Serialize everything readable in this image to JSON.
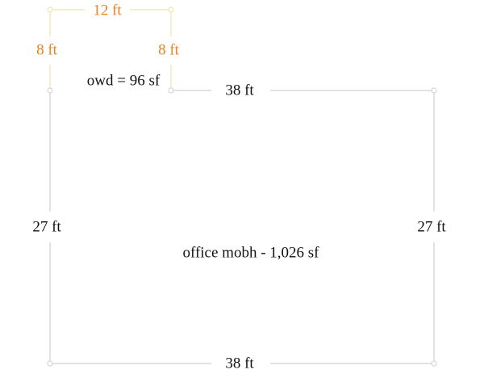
{
  "rooms": [
    {
      "label": "owd = 96 sf",
      "dims": {
        "top": "12 ft",
        "left": "8 ft",
        "right": "8 ft"
      }
    },
    {
      "label": "office mobh - 1,026 sf",
      "dims": {
        "top": "38 ft",
        "left": "27 ft",
        "right": "27 ft",
        "bottom": "38 ft"
      }
    }
  ]
}
